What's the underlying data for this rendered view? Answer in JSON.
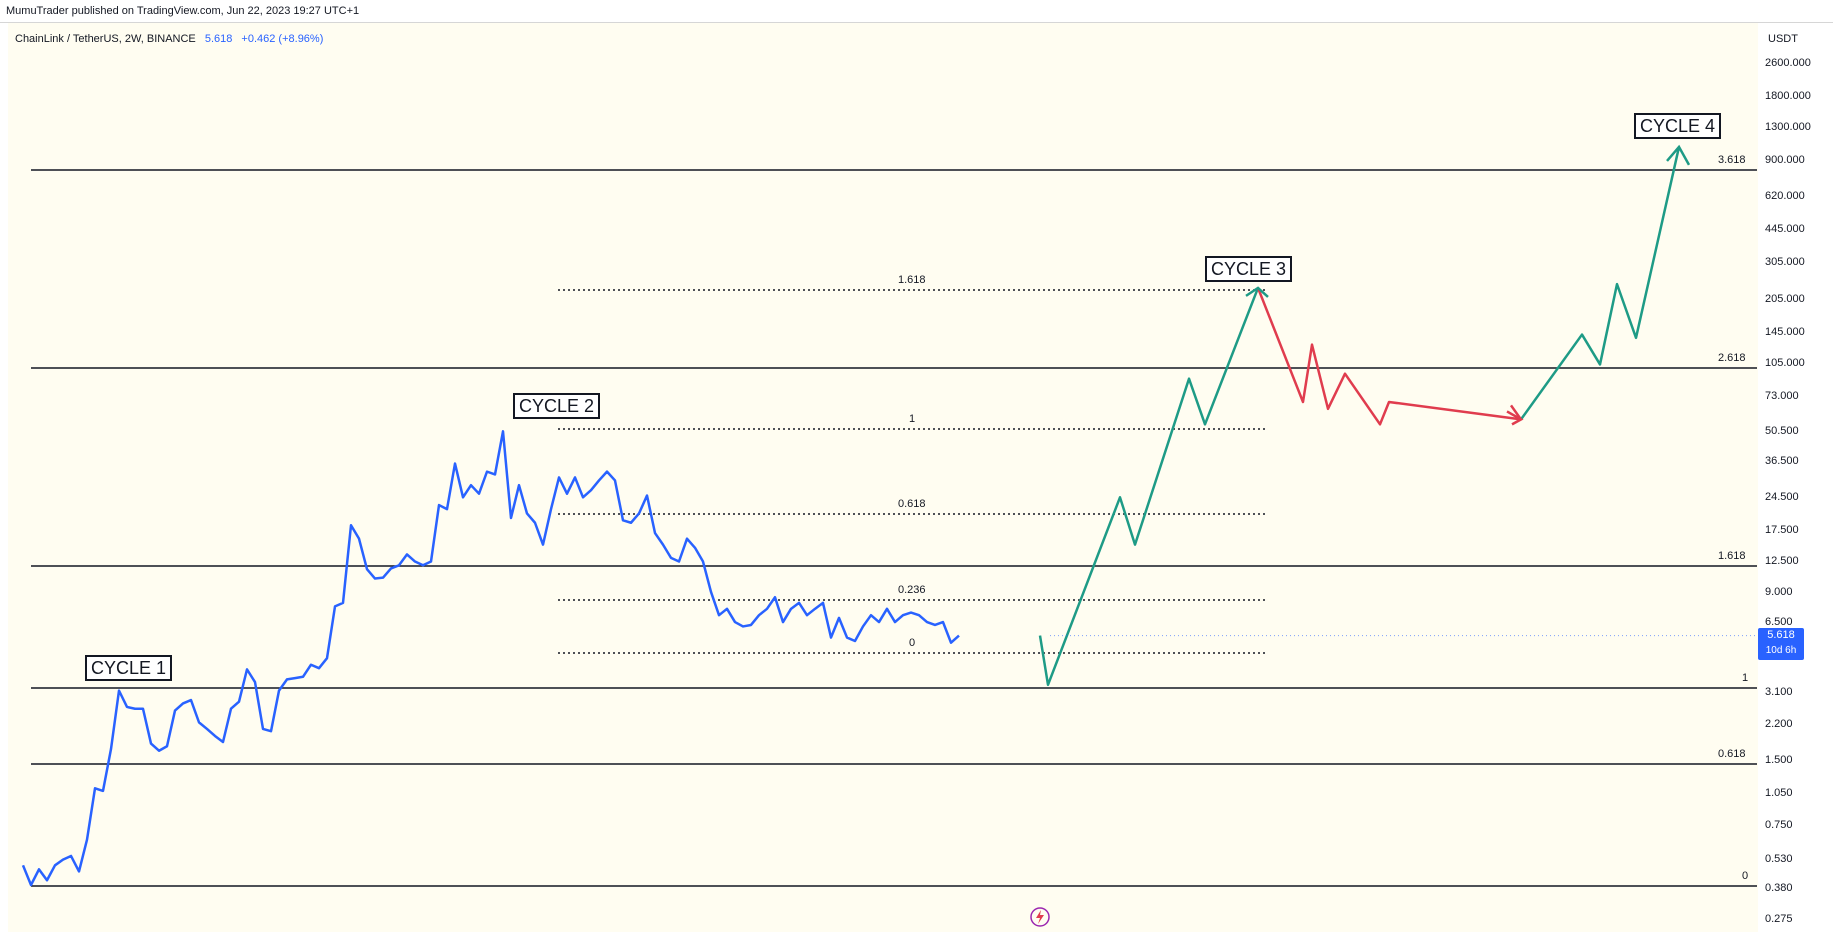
{
  "header": {
    "publish_text": "MumuTrader published on TradingView.com, Jun 22, 2023 19:27 UTC+1"
  },
  "legend": {
    "symbol": "ChainLink / TetherUS, 2W, BINANCE",
    "price": "5.618",
    "change": "+0.462 (+8.96%)"
  },
  "axis": {
    "currency": "USDT",
    "ticks": [
      "2600.000",
      "1800.000",
      "1300.000",
      "900.000",
      "620.000",
      "445.000",
      "305.000",
      "205.000",
      "145.000",
      "105.000",
      "73.000",
      "50.500",
      "36.500",
      "24.500",
      "17.500",
      "12.500",
      "9.000",
      "6.500",
      "3.100",
      "2.200",
      "1.500",
      "1.050",
      "0.750",
      "0.530",
      "0.380",
      "0.275"
    ],
    "price_tag": {
      "value": "5.618",
      "countdown": "10d 6h"
    }
  },
  "fib_long": {
    "labels": [
      "3.618",
      "2.618",
      "1.618",
      "1",
      "0.618",
      "0"
    ]
  },
  "fib_short": {
    "labels": [
      "1.618",
      "1",
      "0.618",
      "0.236",
      "0"
    ]
  },
  "annotations": {
    "cycle1": "CYCLE 1",
    "cycle2": "CYCLE 2",
    "cycle3": "CYCLE 3",
    "cycle4": "CYCLE 4"
  },
  "colors": {
    "price_line": "#2962ff",
    "projection_up": "#1e9b86",
    "projection_down": "#e03c4e",
    "price_tag_bg": "#2962ff"
  },
  "chart_data": {
    "type": "line",
    "title": "ChainLink / TetherUS, 2W, BINANCE",
    "yscale": "log",
    "ylabel": "USDT",
    "ylim": [
      0.275,
      2600
    ],
    "series": [
      {
        "values": [
          0.47,
          0.38,
          0.45,
          0.4,
          0.47,
          0.5,
          0.52,
          0.44,
          0.62,
          1.08,
          1.05,
          1.65,
          3.1,
          2.6,
          2.55,
          2.55,
          1.75,
          1.62,
          1.7,
          2.5,
          2.7,
          2.8,
          2.2,
          2.05,
          1.9,
          1.78,
          2.55,
          2.75,
          3.9,
          3.4,
          2.05,
          2.0,
          3.1,
          3.5,
          3.55,
          3.6,
          4.1,
          3.95,
          4.4,
          7.7,
          8.0,
          18.5,
          16.0,
          11.5,
          10.4,
          10.5,
          11.6,
          12.0,
          13.5,
          12.5,
          12.0,
          12.5,
          23.0,
          22.0,
          36.0,
          25.0,
          28.5,
          26.0,
          33.0,
          32.0,
          51.0,
          20.0,
          28.5,
          21.0,
          19.0,
          15.0,
          22.0,
          31.0,
          26.0,
          31.0,
          25.0,
          27.0,
          30.0,
          33.0,
          30.0,
          19.5,
          19.0,
          21.0,
          25.5,
          17.0,
          15.0,
          13.0,
          12.5,
          16.0,
          14.5,
          12.5,
          9.0,
          7.0,
          7.5,
          6.5,
          6.2,
          6.3,
          7.0,
          7.5,
          8.5,
          6.5,
          7.5,
          8.0,
          7.0,
          7.5,
          8.0,
          5.5,
          6.8,
          5.5,
          5.3,
          6.2,
          7.0,
          6.5,
          7.5,
          6.5,
          7.0,
          7.2,
          7.0,
          6.5,
          6.3,
          6.5,
          5.2,
          5.618
        ]
      },
      {
        "name": "projection",
        "values": [
          5.618,
          3.3,
          25,
          15,
          90,
          55,
          240,
          70,
          130,
          65,
          95,
          55,
          70,
          58,
          145,
          105,
          250,
          140,
          1100
        ]
      }
    ]
  }
}
